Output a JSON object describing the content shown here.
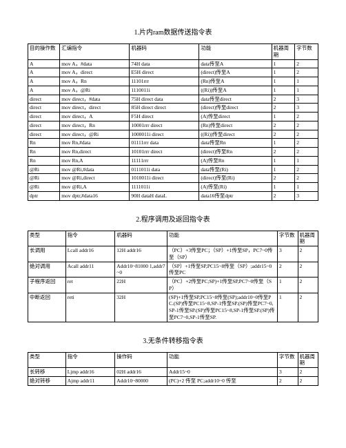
{
  "table1": {
    "title": "1.片内ram数据传送指令表",
    "headers": [
      "目的操作数",
      "汇编指令",
      "机器码",
      "功能",
      "机器周期",
      "字节数"
    ],
    "rows": [
      [
        "A",
        "mov A，#data",
        "74H data",
        "data传至A",
        "1",
        "2"
      ],
      [
        "A",
        "mov A，direct",
        "E5H direct",
        "(direct)传至A",
        "1",
        "2"
      ],
      [
        "A",
        "mov A，Rn",
        "11101rrr",
        "(Rn)传至A",
        "1",
        "1"
      ],
      [
        "A",
        "mov A，@Ri",
        "1110011i",
        "((Ri))传至A",
        "1",
        "1"
      ],
      [
        "direct",
        "mov direct，#data",
        "75H direct data",
        "data传至direct",
        "2",
        "3"
      ],
      [
        "direct",
        "mov direct，direct",
        "85H direct direct",
        "(direct)传至direct",
        "2",
        "3"
      ],
      [
        "direct",
        "mov direct，A",
        "F5H direct",
        "(A)传至direct",
        "1",
        "2"
      ],
      [
        "direct",
        "mov direct，Rn",
        "10001rrr direct",
        "(Rn)传至direct",
        "2",
        "2"
      ],
      [
        "direct",
        "mov direct，@Ri",
        "1000011i direct",
        "((Ri))传至direct",
        "2",
        "2"
      ],
      [
        "Rn",
        "mov Rn,#data",
        "01111rrr data",
        "data传至Rn",
        "1",
        "2"
      ],
      [
        "Rn",
        "mov Rn,direct",
        "10101rrr direct",
        "(direct)传至Rn",
        "2",
        "2"
      ],
      [
        "Rn",
        "mov Rn,A",
        "11111rrr",
        "(A)传至Rn",
        "1",
        "1"
      ],
      [
        "@Ri",
        "mov @Ri,#data",
        "0111011i data",
        "data传至(Ri)",
        "1",
        "2"
      ],
      [
        "@Ri",
        "mov @Ri,direct",
        "1010011i direct",
        "(direct)传至(Ri)",
        "2",
        "2"
      ],
      [
        "@Ri",
        "mov @Ri,A",
        "1111011i",
        "(A)传至(Ri)",
        "1",
        "1"
      ],
      [
        "dptr",
        "mov dptr,#data16",
        "90H dataH dataL",
        "data16传至dptr",
        "2",
        "3"
      ]
    ]
  },
  "table2": {
    "title": "2.程序调用及返回指令表",
    "headers": [
      "类型",
      "指令",
      "机器码",
      "功能",
      "字节数",
      "机器周期"
    ],
    "rows": [
      [
        "长调用",
        "Lcall addr16",
        "12H addr16",
        "（PC）+3传至PC；（SP）+1传至SP，PC7~0传至（SP）",
        "3",
        "2"
      ],
      [
        "绝对调用",
        "Acall addr11",
        "Addr10~81000 1,addr7~0",
        "（SP）+1传至SP,PC15~8传至（SP）;addr15~0传至PC",
        "2",
        "2"
      ],
      [
        "子程序返回",
        "ret",
        "22H",
        "（PC）+2传至PC;SP)+1传至SP,PC7~0传至（SP）",
        "1",
        "2"
      ],
      [
        "中断返回",
        "reti",
        "32H",
        "(SP)+1传至SP,PC15~8传至(SP);addr10~0传至PC.(SP)传至PC15~8,SP-1传至SP.(SP)传至PC7~0,SP-1传至SP.(SP)传至PC15~8,SP-1传至SP.(SP)传至PC7~0,SP-1传至SP.",
        "1",
        "2"
      ]
    ]
  },
  "table3": {
    "title": "3.无条件转移指令表",
    "headers": [
      "类型",
      "指令",
      "操作码",
      "功能",
      "字节数",
      "机器周期"
    ],
    "rows": [
      [
        "长转移",
        "Ljmp addr16",
        "02H addr16",
        "Addr15~0",
        "3",
        "2"
      ],
      [
        "绝对转移",
        "Ajmp addr11",
        "Addr10~80000",
        "(PC)+2 传至 PC;addr10~0 传至",
        "2",
        "2"
      ]
    ]
  }
}
